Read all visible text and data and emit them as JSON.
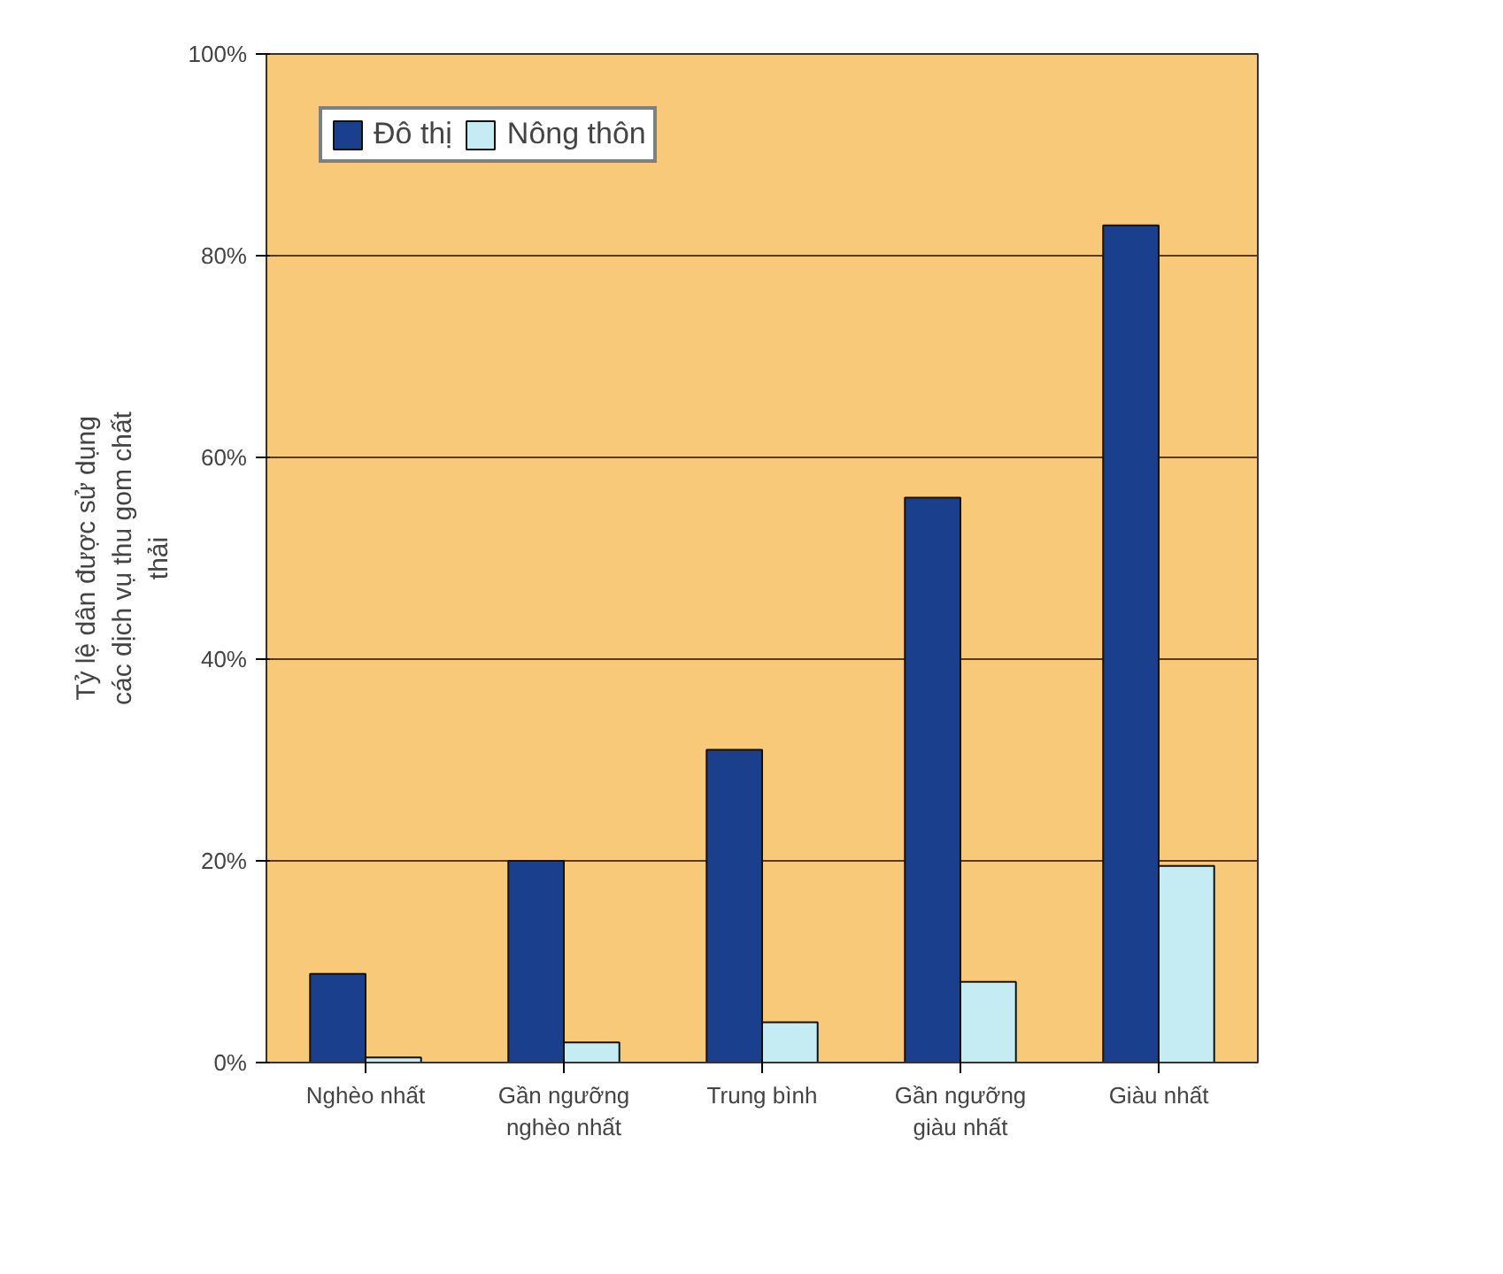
{
  "chart_data": {
    "type": "bar",
    "ylabel": "Tỷ lệ dân được sử dụng các dịch vụ thu gom chất thải",
    "categories": [
      "Nghèo nhất",
      "Gần ngưỡng nghèo nhất",
      "Trung bình",
      "Gần ngưỡng giàu nhất",
      "Giàu nhất"
    ],
    "series": [
      {
        "name": "Đô thị",
        "color": "#1a3f8c",
        "values": [
          8.8,
          20,
          31,
          56,
          83
        ]
      },
      {
        "name": "Nông thôn",
        "color": "#c4ecf2",
        "values": [
          0.5,
          2,
          4,
          8,
          19.5
        ]
      }
    ],
    "ylim": [
      0,
      100
    ],
    "yticks": [
      {
        "value": 0,
        "label": "0%"
      },
      {
        "value": 20,
        "label": "20%"
      },
      {
        "value": 40,
        "label": "40%"
      },
      {
        "value": 60,
        "label": "60%"
      },
      {
        "value": 80,
        "label": "80%"
      },
      {
        "value": 100,
        "label": "100%"
      }
    ],
    "grid": "y",
    "legend": "top left"
  }
}
